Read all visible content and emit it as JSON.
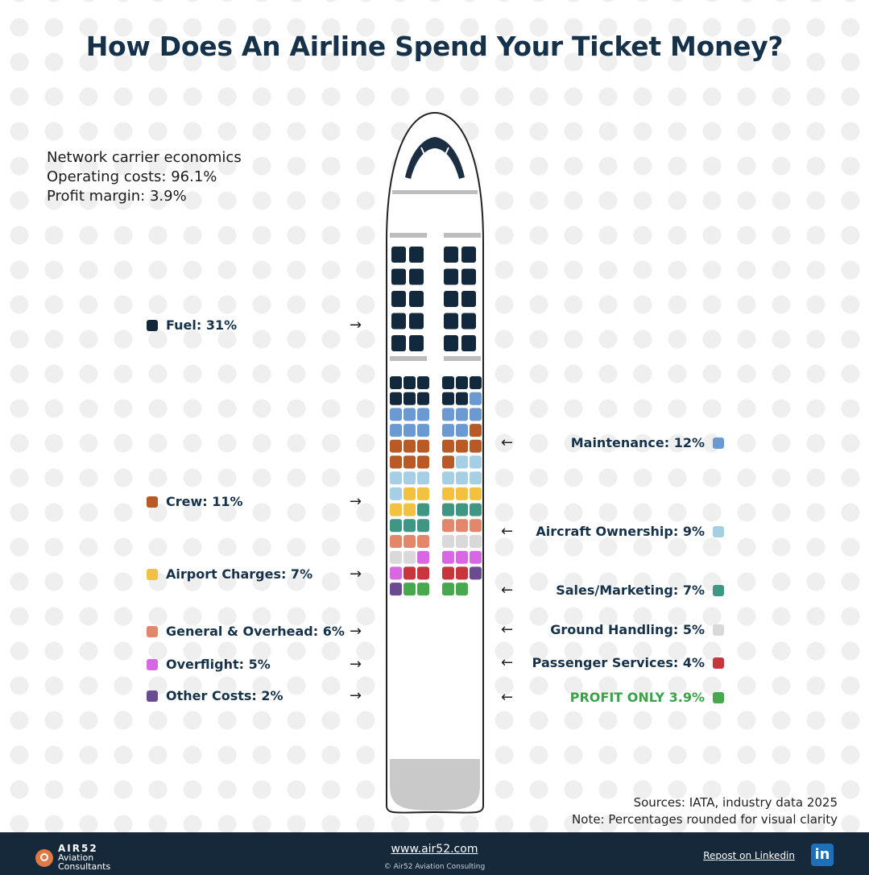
{
  "title": "How Does An Airline Spend Your Ticket Money?",
  "info": {
    "line1": "Network carrier economics",
    "line2": "Operating costs: 96.1%",
    "line3": "Profit margin: 3.9%"
  },
  "arrows": {
    "right": "→",
    "left": "←"
  },
  "chart_data": {
    "type": "pictogram",
    "title": "How Does An Airline Spend Your Ticket Money?",
    "unit": "%",
    "categories": [
      {
        "label": "Fuel: 31%",
        "name": "Fuel",
        "value": 31,
        "color": "#12283d",
        "side": "left"
      },
      {
        "label": "Maintenance: 12%",
        "name": "Maintenance",
        "value": 12,
        "color": "#6b9ad2",
        "side": "right"
      },
      {
        "label": "Crew: 11%",
        "name": "Crew",
        "value": 11,
        "color": "#b95a26",
        "side": "left"
      },
      {
        "label": "Aircraft Ownership: 9%",
        "name": "Aircraft Ownership",
        "value": 9,
        "color": "#a6cfe6",
        "side": "right"
      },
      {
        "label": "Airport Charges: 7%",
        "name": "Airport Charges",
        "value": 7,
        "color": "#f1c13f",
        "side": "left"
      },
      {
        "label": "Sales/Marketing: 7%",
        "name": "Sales/Marketing",
        "value": 7,
        "color": "#3e9683",
        "side": "right"
      },
      {
        "label": "General & Overhead: 6%",
        "name": "General & Overhead",
        "value": 6,
        "color": "#e3876a",
        "side": "left"
      },
      {
        "label": "Ground Handling: 5%",
        "name": "Ground Handling",
        "value": 5,
        "color": "#d9d9d9",
        "side": "right"
      },
      {
        "label": "Overflight: 5%",
        "name": "Overflight",
        "value": 5,
        "color": "#d867e3",
        "side": "left"
      },
      {
        "label": "Passenger Services: 4%",
        "name": "Passenger Services",
        "value": 4,
        "color": "#c6363c",
        "side": "right"
      },
      {
        "label": "Other Costs: 2%",
        "name": "Other Costs",
        "value": 2,
        "color": "#6a4a91",
        "side": "left"
      },
      {
        "label": "PROFIT ONLY 3.9%",
        "name": "Profit",
        "value": 3.9,
        "color": "#47a84e",
        "side": "right"
      }
    ]
  },
  "sources": {
    "line1": "Sources: IATA, industry data 2025",
    "line2": "Note: Percentages rounded for visual clarity"
  },
  "footer": {
    "brand": "AIR52",
    "brand_line2": "Aviation",
    "brand_line3": "Consultants",
    "url": "www.air52.com",
    "copyright": "© Air52 Aviation Consulting",
    "repost": "Repost on Linkedin",
    "linkedin": "in"
  }
}
